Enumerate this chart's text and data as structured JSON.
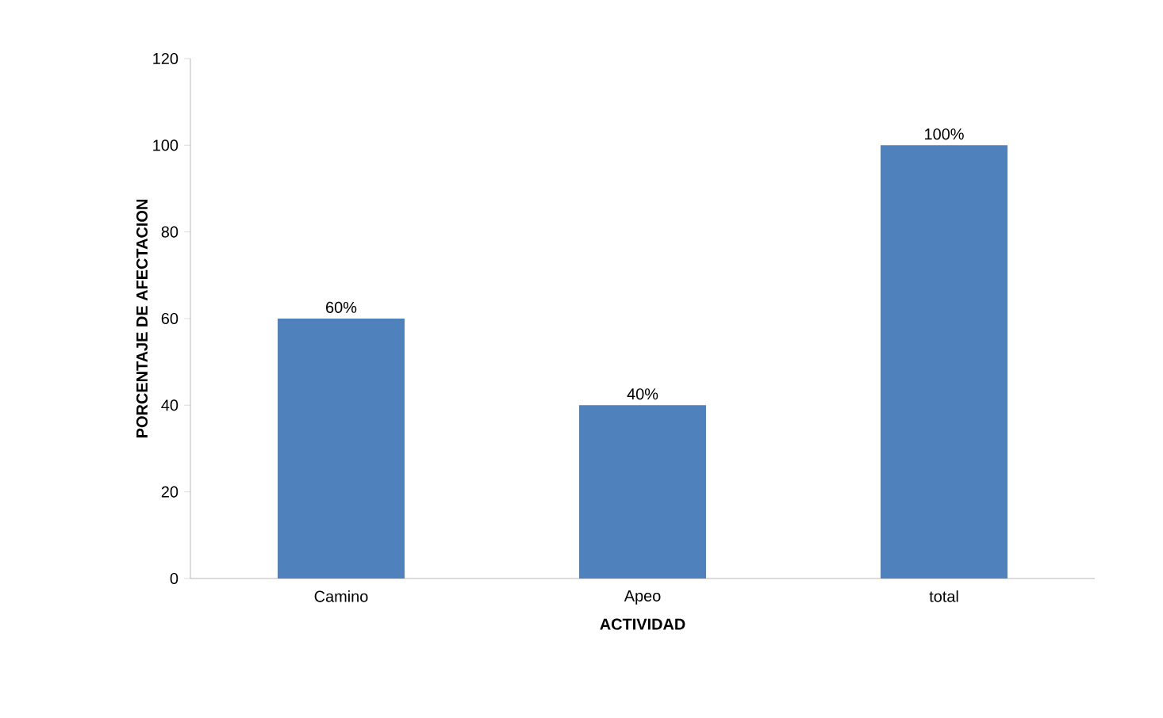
{
  "chart_data": {
    "type": "bar",
    "xlabel": "ACTIVIDAD",
    "ylabel": "PORCENTAJE DE AFECTACION",
    "categories": [
      "Camino",
      "Apeo",
      "total"
    ],
    "values": [
      60,
      40,
      100
    ],
    "value_labels": [
      "60%",
      "40%",
      "100%"
    ],
    "color": "#4f81bd",
    "ylim": [
      0,
      120
    ],
    "yticks": [
      0,
      20,
      40,
      60,
      80,
      100,
      120
    ],
    "grid": false
  }
}
